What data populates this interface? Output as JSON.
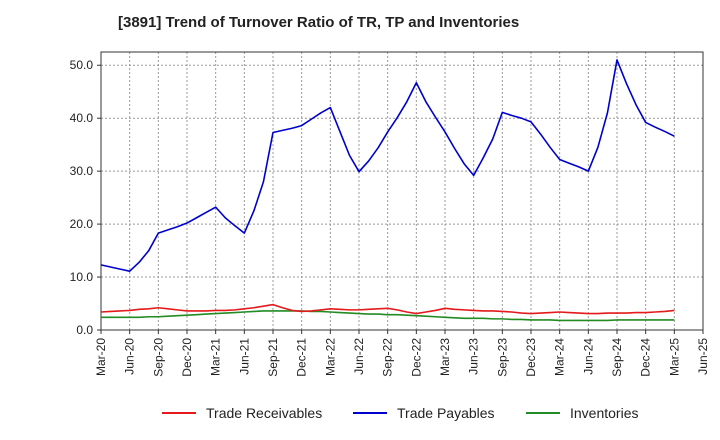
{
  "title": "[3891]  Trend of Turnover Ratio of TR, TP and Inventories",
  "chart_data": {
    "type": "line",
    "x_tick_labels": [
      "Mar-20",
      "Jun-20",
      "Sep-20",
      "Dec-20",
      "Mar-21",
      "Jun-21",
      "Sep-21",
      "Dec-21",
      "Mar-22",
      "Jun-22",
      "Sep-22",
      "Dec-22",
      "Mar-23",
      "Jun-23",
      "Sep-23",
      "Dec-23",
      "Mar-24",
      "Jun-24",
      "Sep-24",
      "Dec-24",
      "Mar-25",
      "Jun-25"
    ],
    "x": [
      "Mar-20",
      "Apr-20",
      "May-20",
      "Jun-20",
      "Jul-20",
      "Aug-20",
      "Sep-20",
      "Oct-20",
      "Nov-20",
      "Dec-20",
      "Jan-21",
      "Feb-21",
      "Mar-21",
      "Apr-21",
      "May-21",
      "Jun-21",
      "Jul-21",
      "Aug-21",
      "Sep-21",
      "Oct-21",
      "Nov-21",
      "Dec-21",
      "Jan-22",
      "Feb-22",
      "Mar-22",
      "Apr-22",
      "May-22",
      "Jun-22",
      "Jul-22",
      "Aug-22",
      "Sep-22",
      "Oct-22",
      "Nov-22",
      "Dec-22",
      "Jan-23",
      "Feb-23",
      "Mar-23",
      "Apr-23",
      "May-23",
      "Jun-23",
      "Jul-23",
      "Aug-23",
      "Sep-23",
      "Oct-23",
      "Nov-23",
      "Dec-23",
      "Jan-24",
      "Feb-24",
      "Mar-24",
      "Apr-24",
      "May-24",
      "Jun-24",
      "Jul-24",
      "Aug-24",
      "Sep-24",
      "Oct-24",
      "Nov-24",
      "Dec-24",
      "Jan-25",
      "Feb-25",
      "Mar-25"
    ],
    "series": [
      {
        "name": "Trade Receivables",
        "color": "#e41a1c",
        "values": [
          3.4,
          3.5,
          3.6,
          3.7,
          3.9,
          4.0,
          4.2,
          4.0,
          3.8,
          3.6,
          3.6,
          3.6,
          3.7,
          3.7,
          3.8,
          4.0,
          4.2,
          4.5,
          4.8,
          4.2,
          3.7,
          3.5,
          3.6,
          3.8,
          4.0,
          3.9,
          3.8,
          3.8,
          3.9,
          4.0,
          4.1,
          3.8,
          3.4,
          3.1,
          3.4,
          3.7,
          4.1,
          3.9,
          3.8,
          3.7,
          3.6,
          3.6,
          3.5,
          3.4,
          3.2,
          3.1,
          3.2,
          3.3,
          3.4,
          3.3,
          3.2,
          3.1,
          3.1,
          3.2,
          3.2,
          3.2,
          3.3,
          3.3,
          3.4,
          3.5,
          3.7
        ]
      },
      {
        "name": "Trade Payables",
        "color": "#0000cc",
        "values": [
          12.3,
          11.9,
          11.5,
          11.1,
          12.8,
          15.0,
          18.3,
          18.9,
          19.5,
          20.2,
          21.2,
          22.2,
          23.2,
          21.2,
          19.7,
          18.3,
          22.5,
          28.0,
          37.3,
          37.7,
          38.1,
          38.6,
          39.8,
          41.0,
          42.0,
          37.5,
          33.0,
          29.9,
          31.9,
          34.4,
          37.4,
          40.1,
          43.1,
          46.7,
          43.1,
          40.2,
          37.4,
          34.3,
          31.4,
          29.2,
          32.5,
          36.1,
          41.1,
          40.5,
          40.0,
          39.3,
          37.0,
          34.5,
          32.2,
          31.5,
          30.8,
          30.0,
          34.5,
          41.0,
          51.0,
          46.5,
          42.5,
          39.2,
          38.3,
          37.5,
          36.6
        ]
      },
      {
        "name": "Inventories",
        "color": "#228b22",
        "values": [
          2.4,
          2.4,
          2.4,
          2.4,
          2.4,
          2.5,
          2.5,
          2.6,
          2.7,
          2.8,
          2.9,
          3.0,
          3.1,
          3.2,
          3.3,
          3.4,
          3.5,
          3.6,
          3.6,
          3.6,
          3.6,
          3.6,
          3.5,
          3.5,
          3.4,
          3.3,
          3.2,
          3.1,
          3.0,
          3.0,
          2.9,
          2.9,
          2.8,
          2.7,
          2.6,
          2.5,
          2.4,
          2.3,
          2.2,
          2.2,
          2.2,
          2.1,
          2.1,
          2.0,
          2.0,
          1.9,
          1.9,
          1.9,
          1.8,
          1.8,
          1.8,
          1.8,
          1.8,
          1.8,
          1.9,
          1.9,
          1.9,
          1.9,
          1.9,
          1.9,
          1.9
        ]
      }
    ],
    "yticks": [
      0.0,
      10.0,
      20.0,
      30.0,
      40.0,
      50.0
    ],
    "ylim": [
      0,
      52.5
    ],
    "grid": true,
    "legend_placement": "bottom"
  }
}
